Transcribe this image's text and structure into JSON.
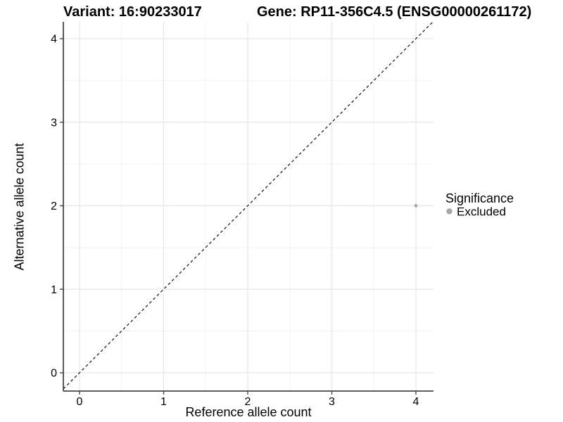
{
  "figure": {
    "title_left": "Variant: 16:90233017",
    "title_right": "Gene: RP11-356C4.5 (ENSG00000261172)"
  },
  "axes": {
    "x": {
      "label": "Reference allele count",
      "tick_labels": [
        "0",
        "1",
        "2",
        "3",
        "4"
      ]
    },
    "y": {
      "label": "Alternative allele count",
      "tick_labels": [
        "0",
        "1",
        "2",
        "3",
        "4"
      ]
    }
  },
  "legend": {
    "title": "Significance",
    "entries": [
      {
        "label": "Excluded",
        "color": "#a8a8a8"
      }
    ]
  },
  "colors": {
    "point": "#a8a8a8",
    "axis_line": "#474747",
    "grid_major": "#e6e6e6",
    "grid_minor": "#f2f2f2",
    "identity_line": "#111111",
    "background": "#ffffff"
  },
  "chart_data": {
    "type": "scatter",
    "title_left": "Variant: 16:90233017",
    "title_right": "Gene: RP11-356C4.5 (ENSG00000261172)",
    "xlabel": "Reference allele count",
    "ylabel": "Alternative allele count",
    "x_ticks": [
      0,
      1,
      2,
      3,
      4
    ],
    "y_ticks": [
      0,
      1,
      2,
      3,
      4
    ],
    "xlim": [
      -0.19,
      4.21
    ],
    "ylim": [
      -0.22,
      4.2
    ],
    "grid": {
      "major": true,
      "minor": true
    },
    "legend_position": "right-middle",
    "reference_line": {
      "type": "identity",
      "equation": "y = x",
      "style": "dashed",
      "color": "#111111"
    },
    "series": [
      {
        "name": "Excluded",
        "color": "#a8a8a8",
        "points": [
          {
            "x": 4,
            "y": 2
          }
        ]
      }
    ]
  }
}
